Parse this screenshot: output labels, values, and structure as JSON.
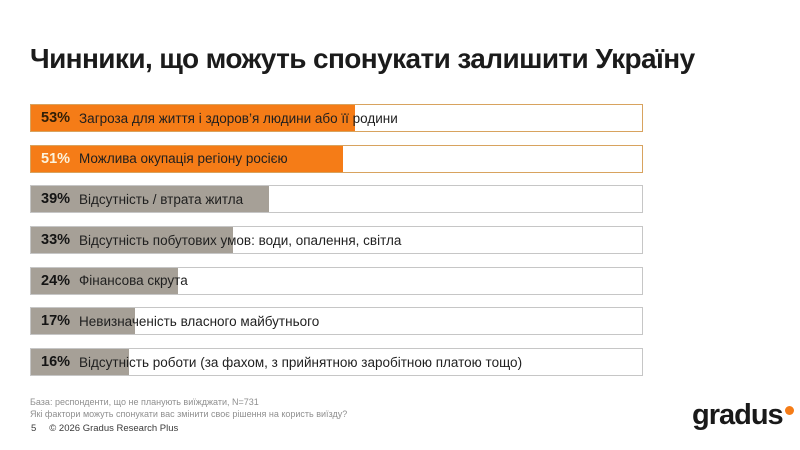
{
  "header": {
    "title": "Чинники, що можуть спонукати залишити Україну"
  },
  "colors": {
    "accent_orange": "#F57C17",
    "orange_border": "#D8A35F",
    "gray_fill": "#A6A097",
    "gray_border": "#C6C6C6"
  },
  "chart_data": {
    "type": "bar",
    "orientation": "horizontal",
    "value_unit": "%",
    "xlim": [
      0,
      100
    ],
    "grid": false,
    "legend": false,
    "categories": [
      "Загроза для життя і здоров’я людини або її родини",
      "Можлива окупація регіону росією",
      "Відсутність / втрата житла",
      "Відсутність побутових умов: води, опалення, світла",
      "Фінансова скрута",
      "Невизначеність власного майбутнього",
      "Відсутність роботи (за фахом, з прийнятною заробітною платою тощо)"
    ],
    "values": [
      53,
      51,
      39,
      33,
      24,
      17,
      16
    ],
    "bars": [
      {
        "pct": "53%",
        "value": 53,
        "label": "Загроза для життя і здоров’я людини або її родини",
        "fill": "#F57C17",
        "border": "#D8A35F",
        "pct_color": "#2F1E07"
      },
      {
        "pct": "51%",
        "value": 51,
        "label": "Можлива окупація регіону росією",
        "fill": "#F57C17",
        "border": "#D8A35F",
        "pct_color": "#FCF3DC"
      },
      {
        "pct": "39%",
        "value": 39,
        "label": "Відсутність / втрата житла",
        "fill": "#A6A097",
        "border": "#C6C6C6",
        "pct_color": "#141414"
      },
      {
        "pct": "33%",
        "value": 33,
        "label": "Відсутність побутових умов: води, опалення, світла",
        "fill": "#A6A097",
        "border": "#C6C6C6",
        "pct_color": "#141414"
      },
      {
        "pct": "24%",
        "value": 24,
        "label": "Фінансова скрута",
        "fill": "#A6A097",
        "border": "#C6C6C6",
        "pct_color": "#141414"
      },
      {
        "pct": "17%",
        "value": 17,
        "label": "Невизначеність власного майбутнього",
        "fill": "#A6A097",
        "border": "#C6C6C6",
        "pct_color": "#141414"
      },
      {
        "pct": "16%",
        "value": 16,
        "label": "Відсутність роботи (за фахом, з прийнятною заробітною платою тощо)",
        "fill": "#A6A097",
        "border": "#C6C6C6",
        "pct_color": "#141414"
      }
    ]
  },
  "footer": {
    "base_note": "База: респонденти, що не планують виїжджати, N=731",
    "question_note": "Які фактори можуть спонукати вас змінити своє рішення на користь виїзду?",
    "page_number": "5",
    "copyright": "© 2026 Gradus Research Plus"
  },
  "logo": {
    "text": "gradus",
    "dot_color": "#F57C17"
  }
}
